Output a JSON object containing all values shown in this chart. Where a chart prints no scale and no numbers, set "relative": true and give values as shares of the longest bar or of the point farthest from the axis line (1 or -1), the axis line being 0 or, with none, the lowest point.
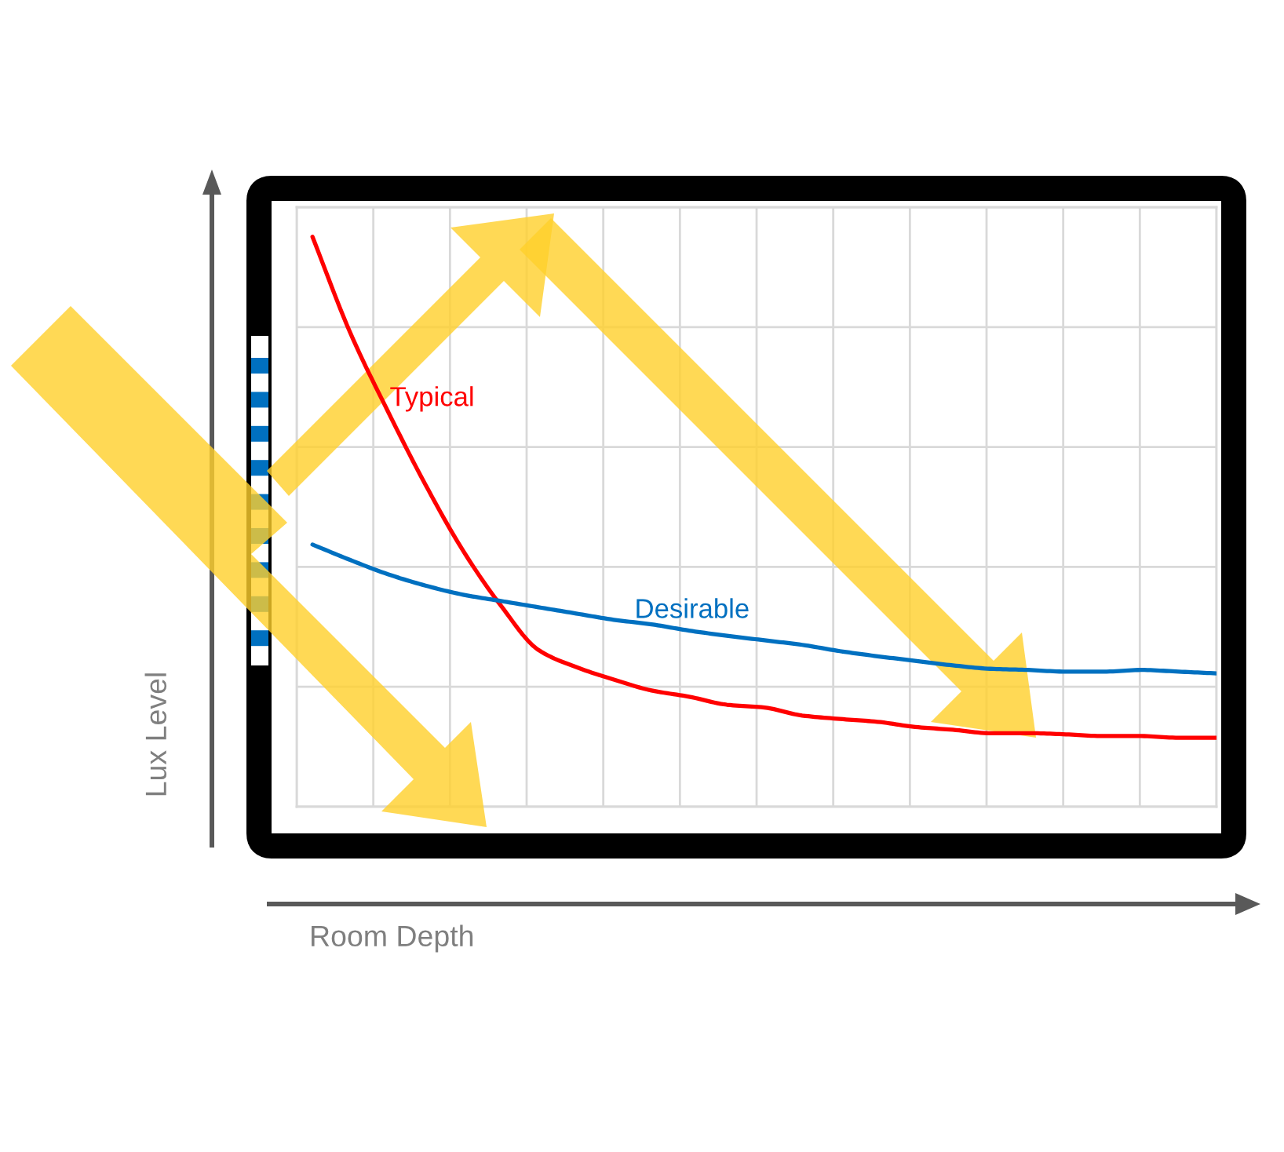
{
  "chart_data": {
    "type": "line",
    "relative": true,
    "xlabel": "Room Depth",
    "ylabel": "Lux Level",
    "categories": [
      null,
      null,
      null,
      null,
      null,
      null,
      null,
      null,
      null,
      null,
      null,
      null,
      null,
      null,
      null,
      null,
      null,
      null,
      null,
      null,
      null,
      null,
      null,
      null,
      null
    ],
    "series": [
      {
        "name": "Typical",
        "color": "#ff0000",
        "values": [
          1.0,
          0.832,
          0.694,
          0.565,
          0.449,
          0.353,
          0.275,
          0.245,
          0.223,
          0.204,
          0.193,
          0.179,
          0.174,
          0.16,
          0.154,
          0.149,
          0.14,
          0.135,
          0.129,
          0.129,
          0.127,
          0.124,
          0.124,
          0.121,
          0.121
        ]
      },
      {
        "name": "Desirable",
        "color": "#0070c0",
        "values": [
          0.46,
          0.433,
          0.408,
          0.388,
          0.372,
          0.361,
          0.35,
          0.339,
          0.328,
          0.32,
          0.309,
          0.3,
          0.292,
          0.284,
          0.273,
          0.264,
          0.256,
          0.248,
          0.242,
          0.24,
          0.237,
          0.237,
          0.24,
          0.237,
          0.234
        ]
      }
    ],
    "grid": true,
    "legend": false,
    "tick_labels": false,
    "marker": "none",
    "line_style": "solid"
  }
}
